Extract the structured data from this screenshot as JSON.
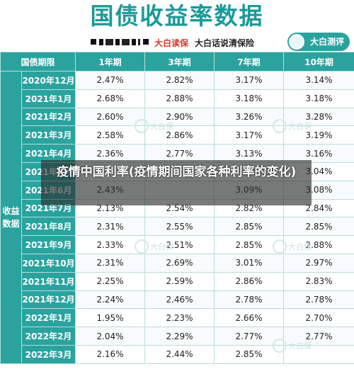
{
  "title": "国债收益率数据",
  "sub": {
    "red_text": "大白读保",
    "black_text": "大白话说清保险"
  },
  "badge": "大白测评",
  "table": {
    "headers": [
      "国债期限",
      "1年期",
      "3年期",
      "7年期",
      "10年期"
    ],
    "side_label": "收益\n数据",
    "rows": [
      {
        "period": "2020年12月",
        "v": [
          "2.47%",
          "2.82%",
          "3.17%",
          "3.14%"
        ]
      },
      {
        "period": "2021年1月",
        "v": [
          "2.68%",
          "2.88%",
          "3.18%",
          "3.18%"
        ]
      },
      {
        "period": "2021年2月",
        "v": [
          "2.60%",
          "2.90%",
          "3.26%",
          "3.28%"
        ]
      },
      {
        "period": "2021年3月",
        "v": [
          "2.58%",
          "2.86%",
          "3.17%",
          "3.19%"
        ]
      },
      {
        "period": "2021年4月",
        "v": [
          "2.36%",
          "2.77%",
          "3.13%",
          "3.16%"
        ]
      },
      {
        "period": "2021年5月",
        "v": [
          "",
          "",
          "",
          "3.04%"
        ]
      },
      {
        "period": "2021年6月",
        "v": [
          "2.43%",
          "",
          "3.09%",
          "3.08%"
        ]
      },
      {
        "period": "2021年7月",
        "v": [
          "2.13%",
          "2.54%",
          "2.82%",
          "2.84%"
        ]
      },
      {
        "period": "2021年8月",
        "v": [
          "2.31%",
          "2.55%",
          "2.85%",
          "2.85%"
        ]
      },
      {
        "period": "2021年9月",
        "v": [
          "2.33%",
          "2.51%",
          "2.85%",
          "2.88%"
        ]
      },
      {
        "period": "2021年10月",
        "v": [
          "2.31%",
          "2.69%",
          "3.01%",
          "2.97%"
        ]
      },
      {
        "period": "2021年11月",
        "v": [
          "2.25%",
          "2.59%",
          "2.86%",
          "2.83%"
        ]
      },
      {
        "period": "2021年12月",
        "v": [
          "2.24%",
          "2.46%",
          "2.78%",
          "2.78%"
        ]
      },
      {
        "period": "2022年1月",
        "v": [
          "1.95%",
          "2.23%",
          "2.66%",
          "2.70%"
        ]
      },
      {
        "period": "2022年2月",
        "v": [
          "2.04%",
          "2.29%",
          "2.77%",
          "2.77%"
        ]
      },
      {
        "period": "2022年3月",
        "v": [
          "2.16%",
          "2.44%",
          "2.85%",
          ""
        ]
      }
    ]
  },
  "overlay": "疫情中国利率(疫情期间国家各种利率的变化)",
  "watermark": "大白保",
  "colors": {
    "accent": "#2aa39f",
    "title": "#1a9a98",
    "red": "#d23b2a"
  }
}
